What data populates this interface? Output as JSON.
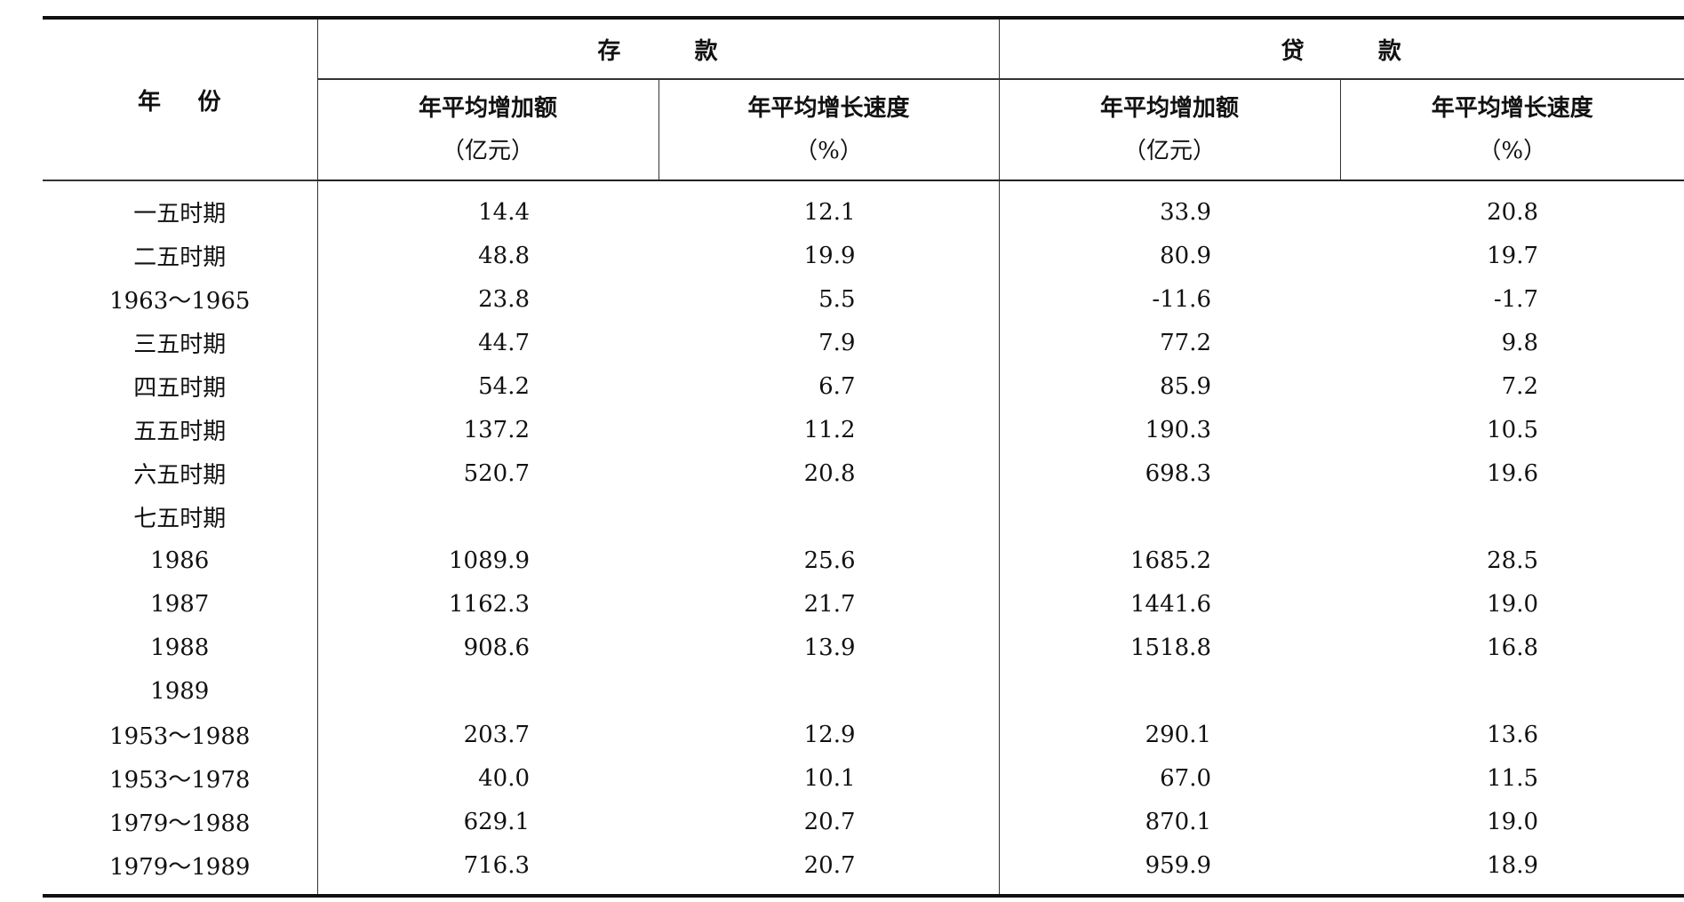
{
  "header": {
    "year": "年份",
    "groups": [
      {
        "title": "存款",
        "columns": [
          {
            "label": "年平均增加额",
            "unit": "（亿元）"
          },
          {
            "label": "年平均增长速度",
            "unit": "（%）"
          }
        ]
      },
      {
        "title": "贷款",
        "columns": [
          {
            "label": "年平均增加额",
            "unit": "（亿元）"
          },
          {
            "label": "年平均增长速度",
            "unit": "（%）"
          }
        ]
      }
    ]
  },
  "rows": [
    [
      "一五时期",
      "14.4",
      "12.1",
      "33.9",
      "20.8"
    ],
    [
      "二五时期",
      "48.8",
      "19.9",
      "80.9",
      "19.7"
    ],
    [
      "1963～1965",
      "23.8",
      "5.5",
      "-11.6",
      "-1.7"
    ],
    [
      "三五时期",
      "44.7",
      "7.9",
      "77.2",
      "9.8"
    ],
    [
      "四五时期",
      "54.2",
      "6.7",
      "85.9",
      "7.2"
    ],
    [
      "五五时期",
      "137.2",
      "11.2",
      "190.3",
      "10.5"
    ],
    [
      "六五时期",
      "520.7",
      "20.8",
      "698.3",
      "19.6"
    ],
    [
      "七五时期"
    ],
    [
      "1986",
      "1089.9",
      "25.6",
      "1685.2",
      "28.5"
    ],
    [
      "1987",
      "1162.3",
      "21.7",
      "1441.6",
      "19.0"
    ],
    [
      "1988",
      "908.6",
      "13.9",
      "1518.8",
      "16.8"
    ],
    [
      "1989"
    ],
    [
      "1953～1988",
      "203.7",
      "12.9",
      "290.1",
      "13.6"
    ],
    [
      "1953～1978",
      "40.0",
      "10.1",
      "67.0",
      "11.5"
    ],
    [
      "1979～1988",
      "629.1",
      "20.7",
      "870.1",
      "19.0"
    ],
    [
      "1979～1989",
      "716.3",
      "20.7",
      "959.9",
      "18.9"
    ]
  ]
}
